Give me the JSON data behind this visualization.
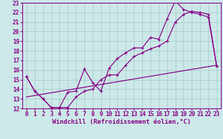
{
  "background_color": "#cce8e8",
  "line_color": "#880088",
  "grid_color": "#aacccc",
  "xlabel": "Windchill (Refroidissement éolien,°C)",
  "xlabel_fontsize": 6.5,
  "tick_fontsize": 6.0,
  "xlim": [
    -0.5,
    23.5
  ],
  "ylim": [
    12,
    23
  ],
  "xticks": [
    0,
    1,
    2,
    3,
    4,
    5,
    6,
    7,
    8,
    9,
    10,
    11,
    12,
    13,
    14,
    15,
    16,
    17,
    18,
    19,
    20,
    21,
    22,
    23
  ],
  "yticks": [
    12,
    13,
    14,
    15,
    16,
    17,
    18,
    19,
    20,
    21,
    22,
    23
  ],
  "line1_x": [
    0,
    1,
    2,
    3,
    4,
    5,
    6,
    7,
    8,
    9,
    10,
    11,
    12,
    13,
    14,
    15,
    16,
    17,
    18,
    19,
    20,
    21,
    22,
    23
  ],
  "line1_y": [
    15.3,
    13.8,
    13.0,
    12.1,
    12.1,
    13.7,
    13.8,
    16.1,
    14.7,
    13.8,
    16.2,
    17.2,
    17.8,
    18.3,
    18.3,
    19.4,
    19.2,
    21.3,
    23.2,
    22.3,
    22.0,
    21.8,
    21.5,
    16.4
  ],
  "line2_x": [
    0,
    1,
    2,
    3,
    4,
    5,
    6,
    7,
    8,
    9,
    10,
    11,
    12,
    13,
    14,
    15,
    16,
    17,
    18,
    19,
    20,
    21,
    22,
    23
  ],
  "line2_y": [
    15.3,
    13.8,
    13.0,
    12.1,
    12.1,
    12.1,
    13.2,
    13.8,
    14.0,
    15.0,
    15.5,
    15.5,
    16.5,
    17.4,
    17.8,
    18.2,
    18.5,
    19.0,
    21.0,
    21.8,
    22.1,
    22.0,
    21.8,
    16.4
  ],
  "line3_x": [
    0,
    23
  ],
  "line3_y": [
    13.2,
    16.5
  ]
}
